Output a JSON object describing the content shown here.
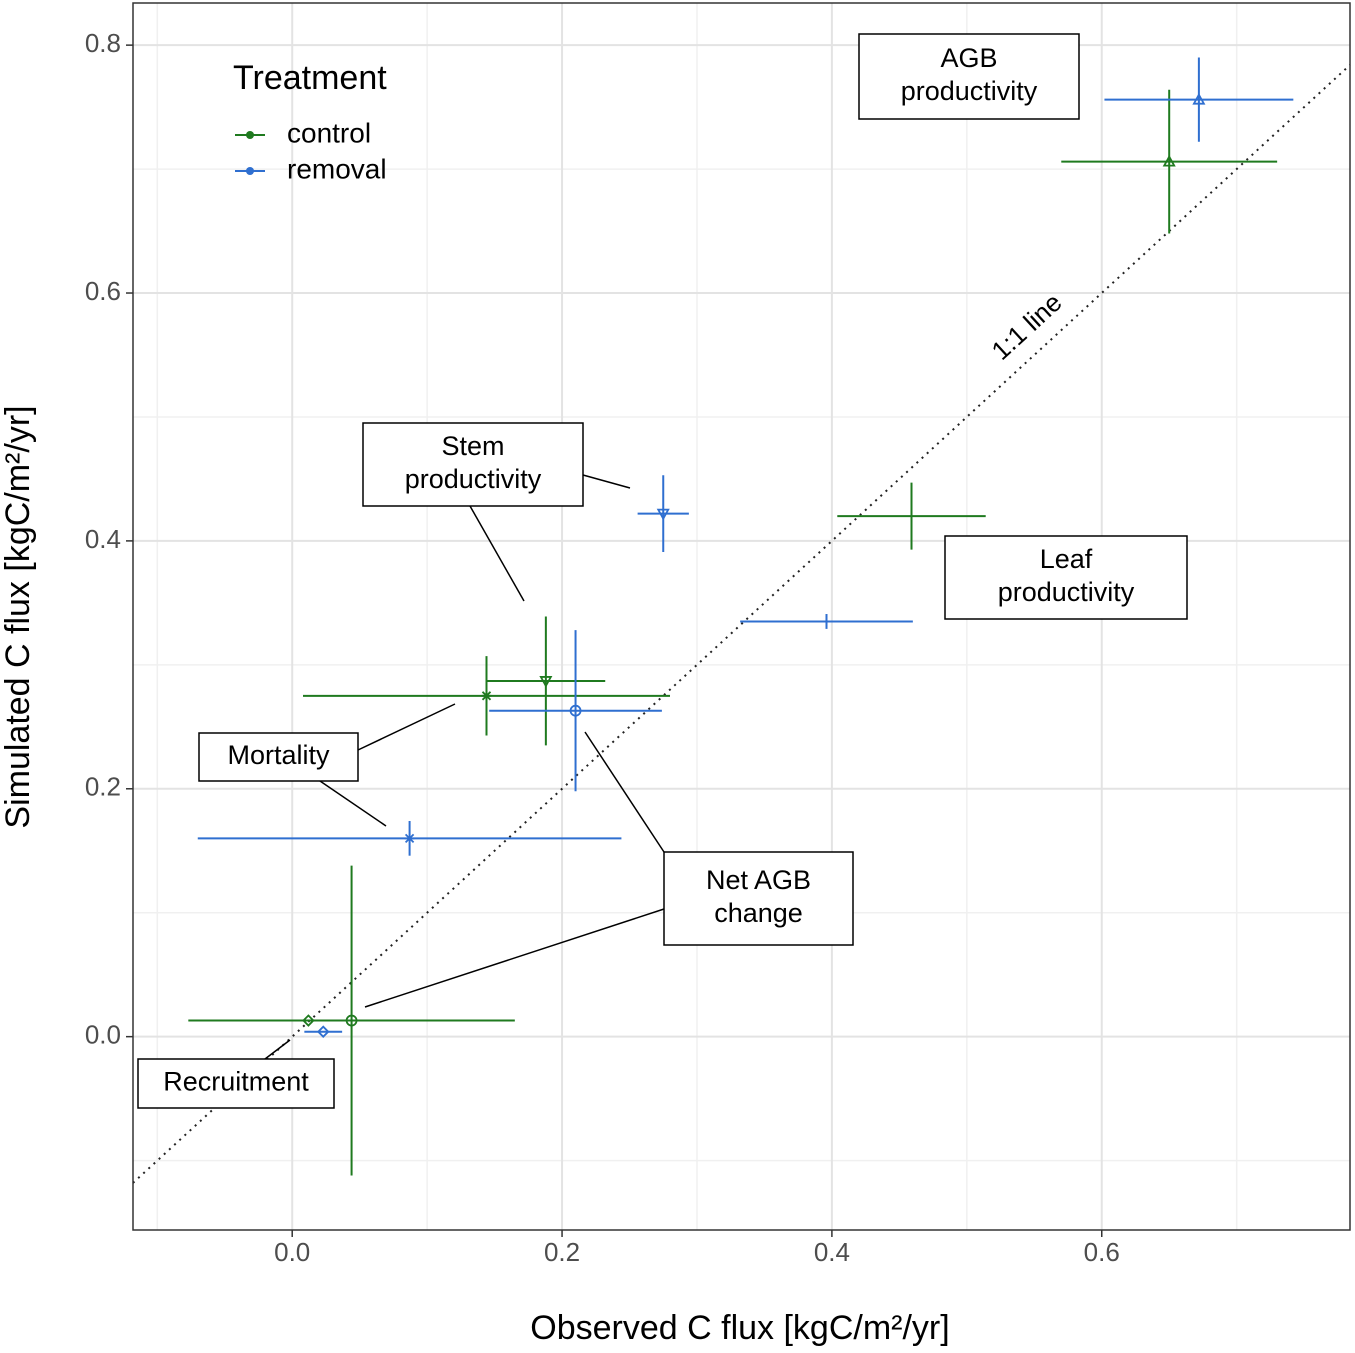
{
  "chart_data": {
    "type": "scatter",
    "x_label": "Observed C flux [kgC/m²/yr]",
    "y_label": "Simulated C flux [kgC/m²/yr]",
    "legend_title": "Treatment",
    "legend_position": "top-left",
    "grid": true,
    "xlim": [
      -0.118,
      0.784
    ],
    "ylim": [
      -0.156,
      0.834
    ],
    "xticks": [
      {
        "value": 0,
        "label": "0.0"
      },
      0.2,
      0.4,
      0.6
    ],
    "yticks": [
      {
        "value": 0,
        "label": "0.0"
      },
      0.2,
      0.4,
      0.6,
      0.8
    ],
    "x_minor_ticks": [
      -0.1,
      0.1,
      0.3,
      0.5,
      0.7
    ],
    "y_minor_ticks": [
      -0.1,
      0.1,
      0.3,
      0.5,
      0.7
    ],
    "one_to_one_label": "1:1 line",
    "labels": [
      [
        "AGB",
        "productivity"
      ],
      [
        "Leaf",
        "productivity"
      ],
      [
        "Stem",
        "productivity"
      ],
      [
        "Mortality"
      ],
      [
        "Net AGB",
        "change"
      ],
      [
        "Recruitment"
      ]
    ],
    "series": [
      {
        "name": "control",
        "color": "#1f7a1f",
        "x": [
          0.65,
          0.459,
          0.188,
          0.144,
          0.044,
          0.012
        ],
        "values": [
          0.706,
          0.42,
          0.287,
          0.275,
          0.013,
          0.013
        ],
        "x_error": [
          0.08,
          0.055,
          0.044,
          0.136,
          0.121,
          0
        ],
        "y_error": [
          0.058,
          0.027,
          0.052,
          0.032,
          0.125,
          0
        ]
      },
      {
        "name": "removal",
        "color": "#2f6fd0",
        "x": [
          0.672,
          0.396,
          0.275,
          0.087,
          0.21,
          0.023
        ],
        "values": [
          0.756,
          0.335,
          0.422,
          0.16,
          0.263,
          0.004
        ],
        "x_error": [
          0.07,
          0.064,
          0.019,
          0.157,
          0.064,
          0.014
        ],
        "y_error": [
          0.034,
          0.006,
          0.031,
          0.014,
          0.065,
          0
        ]
      }
    ]
  }
}
